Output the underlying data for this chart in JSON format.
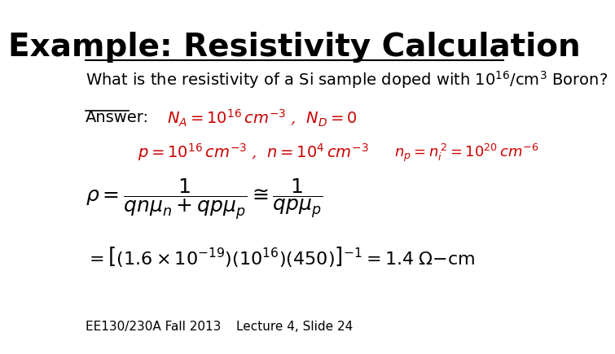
{
  "title": "Example: Resistivity Calculation",
  "title_fontsize": 28,
  "title_fontweight": "bold",
  "bg_color": "#ffffff",
  "question_text": "What is the resistivity of a Si sample doped with 10$^{16}$/cm$^3$ Boron?",
  "question_fontsize": 14,
  "answer_label": "Answer:",
  "footer_left": "EE130/230A Fall 2013",
  "footer_right": "Lecture 4, Slide 24",
  "footer_fontsize": 11,
  "red_color": "#cc0000",
  "black_color": "#000000"
}
